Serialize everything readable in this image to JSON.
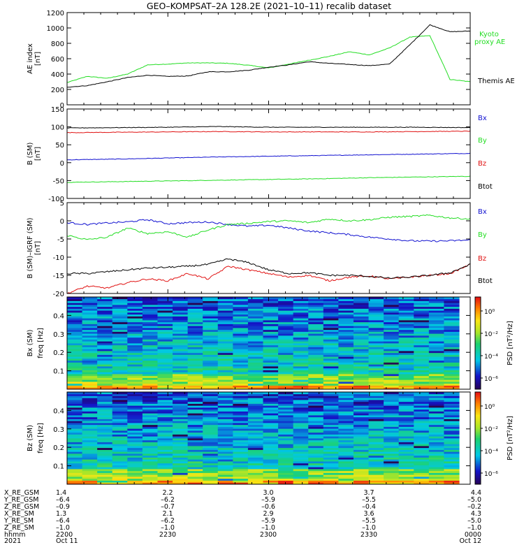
{
  "title": "GEO–KOMPSAT–2A 128.2E (2021–10–11) recalib dataset",
  "colors": {
    "black": "#000000",
    "green": "#22dd22",
    "red": "#e01010",
    "blue": "#1010d0"
  },
  "chart_data": [
    {
      "type": "line",
      "panel": "ae",
      "ylabel": "AE index [nT]",
      "ylim": [
        0,
        1200
      ],
      "yticks": [
        0,
        200,
        400,
        600,
        800,
        1000,
        1200
      ],
      "x": [
        0,
        0.1,
        0.2,
        0.3,
        0.4,
        0.5,
        0.6,
        0.7,
        0.8,
        0.9,
        1.0,
        1.1,
        1.2,
        1.3,
        1.4,
        1.5,
        1.6,
        1.7,
        1.8,
        1.9,
        2.0
      ],
      "series": [
        {
          "name": "Kyoto proxy AE",
          "color": "green",
          "values": [
            290,
            370,
            345,
            400,
            520,
            530,
            545,
            545,
            540,
            515,
            480,
            530,
            580,
            630,
            690,
            650,
            740,
            880,
            900,
            330,
            300
          ]
        },
        {
          "name": "Themis AE",
          "color": "black",
          "values": [
            230,
            250,
            300,
            355,
            385,
            370,
            375,
            430,
            430,
            450,
            490,
            520,
            560,
            540,
            525,
            510,
            530,
            780,
            1040,
            950,
            960
          ]
        }
      ]
    },
    {
      "type": "line",
      "panel": "b",
      "ylabel": "B (SM) [nT]",
      "ylim": [
        -100,
        150
      ],
      "yticks": [
        -100,
        -50,
        0,
        50,
        100,
        150
      ],
      "x": [
        0,
        0.25,
        0.5,
        0.75,
        1.0,
        1.25,
        1.5,
        1.75,
        2.0
      ],
      "series": [
        {
          "name": "Bx",
          "color": "blue",
          "values": [
            8,
            10,
            13,
            16,
            18,
            20,
            22,
            24,
            26
          ]
        },
        {
          "name": "By",
          "color": "green",
          "values": [
            -55,
            -53,
            -51,
            -49,
            -47,
            -45,
            -42,
            -40,
            -38
          ]
        },
        {
          "name": "Bz",
          "color": "red",
          "values": [
            84,
            85,
            86,
            87,
            86,
            86,
            86,
            87,
            88
          ]
        },
        {
          "name": "Btot",
          "color": "black",
          "values": [
            97,
            98,
            99,
            101,
            99,
            99,
            99,
            99,
            98
          ]
        }
      ]
    },
    {
      "type": "line",
      "panel": "dbb",
      "ylabel": "B (SM)–IGRF (SM) [nT]",
      "ylim": [
        -20,
        5
      ],
      "yticks": [
        -20,
        -15,
        -10,
        -5,
        0,
        5
      ],
      "x": [
        0,
        0.1,
        0.2,
        0.3,
        0.4,
        0.5,
        0.6,
        0.7,
        0.8,
        0.9,
        1.0,
        1.1,
        1.2,
        1.3,
        1.4,
        1.5,
        1.6,
        1.7,
        1.8,
        1.9,
        2.0
      ],
      "series": [
        {
          "name": "Bx",
          "color": "blue",
          "values": [
            -0.5,
            -1.0,
            -0.6,
            -0.3,
            0.3,
            -0.8,
            -0.5,
            -0.3,
            -1.0,
            -1.5,
            -1.2,
            -2.0,
            -2.8,
            -3.3,
            -3.8,
            -4.5,
            -5.0,
            -5.5,
            -5.6,
            -5.5,
            -5.3
          ]
        },
        {
          "name": "By",
          "color": "green",
          "values": [
            -4.0,
            -5.2,
            -4.5,
            -2.0,
            -3.5,
            -3.0,
            -4.5,
            -2.5,
            -1.0,
            -0.7,
            -0.2,
            0.0,
            -0.5,
            0.5,
            0.0,
            0.3,
            1.0,
            1.2,
            1.5,
            0.8,
            0.5
          ]
        },
        {
          "name": "Bz",
          "color": "red",
          "values": [
            -20.0,
            -18.0,
            -18.5,
            -17.0,
            -16.0,
            -16.5,
            -14.5,
            -16.0,
            -12.5,
            -13.5,
            -14.5,
            -15.5,
            -15.0,
            -16.5,
            -15.5,
            -15.2,
            -16.0,
            -15.5,
            -15.0,
            -14.5,
            -12.0
          ]
        },
        {
          "name": "Btot",
          "color": "black",
          "values": [
            -14.5,
            -14.5,
            -14.0,
            -13.5,
            -13.0,
            -12.8,
            -12.5,
            -12.0,
            -10.5,
            -11.5,
            -13.5,
            -14.5,
            -14.3,
            -15.0,
            -15.0,
            -15.3,
            -15.8,
            -15.5,
            -15.0,
            -14.3,
            -12.0
          ]
        }
      ]
    },
    {
      "type": "heatmap",
      "panel": "specx",
      "ylabel": "Bx (SM) freq [Hz]",
      "ylim": [
        0,
        0.5
      ],
      "yticks": [
        0.1,
        0.2,
        0.3,
        0.4
      ],
      "colorbar": {
        "label": "PSD [nT²/Hz]",
        "ticks": [
          "10⁰",
          "10⁻²",
          "10⁻⁴",
          "10⁻⁶"
        ]
      }
    },
    {
      "type": "heatmap",
      "panel": "specz",
      "ylabel": "Bz (SM) freq [Hz]",
      "ylim": [
        0,
        0.5
      ],
      "yticks": [
        0.1,
        0.2,
        0.3,
        0.4
      ],
      "colorbar": {
        "label": "PSD [nT²/Hz]",
        "ticks": [
          "10⁰",
          "10⁻²",
          "10⁻⁴",
          "10⁻⁶"
        ]
      }
    }
  ],
  "footer": {
    "labels": [
      "X_RE_GSM",
      "Y_RE_GSM",
      "Z_RE_GSM",
      "X_RE_SM",
      "Y_RE_SM",
      "Z_RE_SM",
      "hhmm",
      "2021"
    ],
    "columns": [
      [
        "1.4",
        "–6.4",
        "–0.9",
        "1.3",
        "–6.4",
        "–1.0",
        "2200",
        "Oct 11"
      ],
      [
        "2.2",
        "–6.2",
        "–0.7",
        "2.1",
        "–6.2",
        "–1.0",
        "2230",
        ""
      ],
      [
        "3.0",
        "–5.9",
        "–0.6",
        "2.9",
        "–5.9",
        "–1.0",
        "2300",
        ""
      ],
      [
        "3.7",
        "–5.5",
        "–0.4",
        "3.6",
        "–5.5",
        "–1.0",
        "2330",
        ""
      ],
      [
        "4.4",
        "–5.0",
        "–0.2",
        "4.3",
        "–5.0",
        "–1.0",
        "0000",
        "Oct 12"
      ]
    ]
  }
}
